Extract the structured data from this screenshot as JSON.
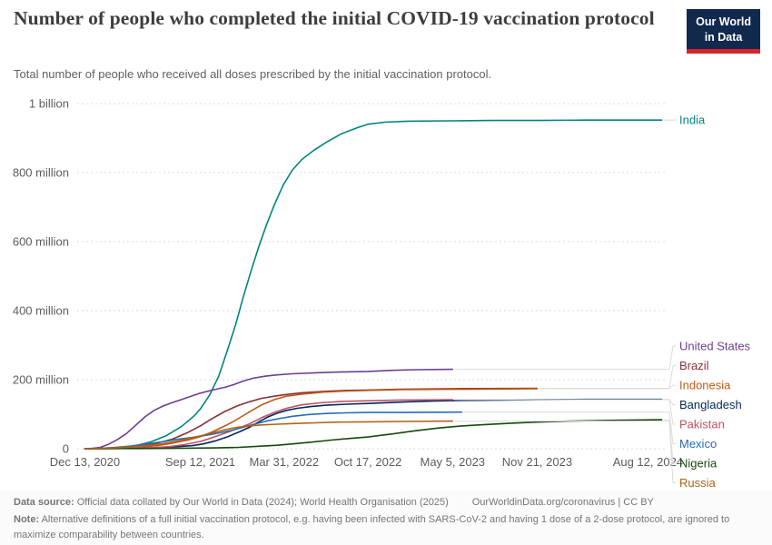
{
  "header": {
    "title": "Number of people who completed the initial COVID-19 vaccination protocol",
    "subtitle": "Total number of people who received all doses prescribed by the initial vaccination protocol.",
    "logo": {
      "line1": "Our World",
      "line2": "in Data"
    }
  },
  "chart_data": {
    "type": "line",
    "title": "Number of people who completed the initial COVID-19 vaccination protocol",
    "unit": "people",
    "value_scale": "millions",
    "grid": true,
    "legend_position": "right",
    "x_axis": {
      "range": [
        2020.9,
        2024.72
      ],
      "ticks": [
        {
          "t": 2020.95,
          "label": "Dec 13, 2020"
        },
        {
          "t": 2021.7,
          "label": "Sep 12, 2021"
        },
        {
          "t": 2022.245,
          "label": "Mar 31, 2022"
        },
        {
          "t": 2022.79,
          "label": "Oct 17, 2022"
        },
        {
          "t": 2023.34,
          "label": "May 5, 2023"
        },
        {
          "t": 2023.89,
          "label": "Nov 21, 2023"
        },
        {
          "t": 2024.61,
          "label": "Aug 12, 2024"
        }
      ]
    },
    "y_axis": {
      "range": [
        0,
        1000
      ],
      "ticks": [
        {
          "v": 0,
          "label": "0"
        },
        {
          "v": 200,
          "label": "200 million"
        },
        {
          "v": 400,
          "label": "400 million"
        },
        {
          "v": 600,
          "label": "600 million"
        },
        {
          "v": 800,
          "label": "800 million"
        },
        {
          "v": 1000,
          "label": "1 billion"
        }
      ]
    },
    "series": [
      {
        "name": "India",
        "color": "#00847e",
        "points": [
          [
            2020.95,
            0
          ],
          [
            2021.08,
            0.5
          ],
          [
            2021.18,
            3
          ],
          [
            2021.28,
            9
          ],
          [
            2021.38,
            20
          ],
          [
            2021.48,
            38
          ],
          [
            2021.58,
            65
          ],
          [
            2021.66,
            95
          ],
          [
            2021.7,
            115
          ],
          [
            2021.76,
            155
          ],
          [
            2021.82,
            210
          ],
          [
            2021.88,
            290
          ],
          [
            2021.93,
            360
          ],
          [
            2021.98,
            440
          ],
          [
            2022.03,
            515
          ],
          [
            2022.08,
            585
          ],
          [
            2022.13,
            648
          ],
          [
            2022.18,
            705
          ],
          [
            2022.24,
            765
          ],
          [
            2022.3,
            808
          ],
          [
            2022.36,
            838
          ],
          [
            2022.44,
            865
          ],
          [
            2022.52,
            888
          ],
          [
            2022.62,
            913
          ],
          [
            2022.72,
            930
          ],
          [
            2022.79,
            940
          ],
          [
            2022.9,
            946
          ],
          [
            2023.05,
            949
          ],
          [
            2023.34,
            950
          ],
          [
            2023.6,
            951
          ],
          [
            2023.89,
            951
          ],
          [
            2024.2,
            952
          ],
          [
            2024.7,
            952
          ]
        ]
      },
      {
        "name": "United States",
        "color": "#6d3e91",
        "points": [
          [
            2020.95,
            0
          ],
          [
            2021.0,
            1
          ],
          [
            2021.05,
            4
          ],
          [
            2021.1,
            12
          ],
          [
            2021.16,
            26
          ],
          [
            2021.22,
            44
          ],
          [
            2021.28,
            68
          ],
          [
            2021.34,
            92
          ],
          [
            2021.4,
            111
          ],
          [
            2021.46,
            124
          ],
          [
            2021.52,
            134
          ],
          [
            2021.58,
            143
          ],
          [
            2021.64,
            152
          ],
          [
            2021.7,
            161
          ],
          [
            2021.78,
            170
          ],
          [
            2021.86,
            178
          ],
          [
            2021.92,
            186
          ],
          [
            2021.98,
            196
          ],
          [
            2022.04,
            204
          ],
          [
            2022.12,
            210
          ],
          [
            2022.2,
            214
          ],
          [
            2022.3,
            217
          ],
          [
            2022.45,
            220
          ],
          [
            2022.6,
            222
          ],
          [
            2022.79,
            224
          ],
          [
            2022.95,
            227
          ],
          [
            2023.1,
            229
          ],
          [
            2023.34,
            230
          ]
        ]
      },
      {
        "name": "Brazil",
        "color": "#883039",
        "points": [
          [
            2020.95,
            0
          ],
          [
            2021.1,
            1
          ],
          [
            2021.22,
            4
          ],
          [
            2021.32,
            9
          ],
          [
            2021.42,
            16
          ],
          [
            2021.52,
            28
          ],
          [
            2021.62,
            47
          ],
          [
            2021.7,
            66
          ],
          [
            2021.78,
            88
          ],
          [
            2021.86,
            108
          ],
          [
            2021.94,
            124
          ],
          [
            2022.02,
            136
          ],
          [
            2022.1,
            146
          ],
          [
            2022.18,
            152
          ],
          [
            2022.26,
            157
          ],
          [
            2022.36,
            162
          ],
          [
            2022.5,
            166
          ],
          [
            2022.65,
            169
          ],
          [
            2022.79,
            170
          ],
          [
            2023.0,
            172
          ],
          [
            2023.34,
            174
          ],
          [
            2023.89,
            175
          ]
        ]
      },
      {
        "name": "Indonesia",
        "color": "#be5915",
        "points": [
          [
            2020.95,
            0
          ],
          [
            2021.15,
            1
          ],
          [
            2021.3,
            4
          ],
          [
            2021.42,
            9
          ],
          [
            2021.52,
            16
          ],
          [
            2021.62,
            25
          ],
          [
            2021.7,
            35
          ],
          [
            2021.78,
            49
          ],
          [
            2021.86,
            66
          ],
          [
            2021.92,
            80
          ],
          [
            2021.98,
            96
          ],
          [
            2022.04,
            112
          ],
          [
            2022.1,
            127
          ],
          [
            2022.18,
            142
          ],
          [
            2022.26,
            152
          ],
          [
            2022.36,
            158
          ],
          [
            2022.5,
            164
          ],
          [
            2022.65,
            167
          ],
          [
            2022.79,
            169
          ],
          [
            2023.0,
            171
          ],
          [
            2023.34,
            172
          ],
          [
            2023.89,
            174
          ]
        ]
      },
      {
        "name": "Bangladesh",
        "color": "#00295b",
        "points": [
          [
            2020.95,
            0
          ],
          [
            2021.2,
            1
          ],
          [
            2021.4,
            3
          ],
          [
            2021.55,
            6
          ],
          [
            2021.65,
            9
          ],
          [
            2021.72,
            14
          ],
          [
            2021.8,
            23
          ],
          [
            2021.88,
            35
          ],
          [
            2021.96,
            50
          ],
          [
            2022.02,
            62
          ],
          [
            2022.08,
            78
          ],
          [
            2022.14,
            92
          ],
          [
            2022.2,
            103
          ],
          [
            2022.26,
            111
          ],
          [
            2022.33,
            117
          ],
          [
            2022.42,
            122
          ],
          [
            2022.52,
            126
          ],
          [
            2022.65,
            129
          ],
          [
            2022.79,
            131
          ],
          [
            2023.0,
            135
          ],
          [
            2023.2,
            138
          ],
          [
            2023.4,
            140
          ],
          [
            2023.65,
            141
          ],
          [
            2023.89,
            142
          ],
          [
            2024.2,
            143
          ],
          [
            2024.7,
            143
          ]
        ]
      },
      {
        "name": "Pakistan",
        "color": "#c15065",
        "points": [
          [
            2020.95,
            0
          ],
          [
            2021.2,
            1
          ],
          [
            2021.38,
            3
          ],
          [
            2021.5,
            6
          ],
          [
            2021.6,
            12
          ],
          [
            2021.7,
            21
          ],
          [
            2021.78,
            32
          ],
          [
            2021.86,
            45
          ],
          [
            2021.94,
            58
          ],
          [
            2022.02,
            72
          ],
          [
            2022.1,
            90
          ],
          [
            2022.18,
            105
          ],
          [
            2022.26,
            117
          ],
          [
            2022.36,
            127
          ],
          [
            2022.48,
            133
          ],
          [
            2022.62,
            137
          ],
          [
            2022.79,
            139
          ],
          [
            2023.0,
            141
          ],
          [
            2023.34,
            142
          ]
        ]
      },
      {
        "name": "Mexico",
        "color": "#286bbb",
        "points": [
          [
            2020.95,
            0
          ],
          [
            2021.05,
            1
          ],
          [
            2021.15,
            4
          ],
          [
            2021.25,
            8
          ],
          [
            2021.35,
            14
          ],
          [
            2021.45,
            20
          ],
          [
            2021.55,
            27
          ],
          [
            2021.65,
            33
          ],
          [
            2021.7,
            36
          ],
          [
            2021.8,
            44
          ],
          [
            2021.9,
            53
          ],
          [
            2021.98,
            62
          ],
          [
            2022.06,
            72
          ],
          [
            2022.14,
            81
          ],
          [
            2022.22,
            88
          ],
          [
            2022.3,
            94
          ],
          [
            2022.4,
            99
          ],
          [
            2022.52,
            102
          ],
          [
            2022.65,
            104
          ],
          [
            2022.79,
            105
          ],
          [
            2023.0,
            105
          ],
          [
            2023.4,
            106
          ]
        ]
      },
      {
        "name": "Nigeria",
        "color": "#18470f",
        "points": [
          [
            2020.95,
            0
          ],
          [
            2021.3,
            0.5
          ],
          [
            2021.6,
            1.5
          ],
          [
            2021.8,
            2.5
          ],
          [
            2021.95,
            4
          ],
          [
            2022.08,
            7
          ],
          [
            2022.2,
            10
          ],
          [
            2022.3,
            14
          ],
          [
            2022.42,
            19
          ],
          [
            2022.55,
            25
          ],
          [
            2022.68,
            30
          ],
          [
            2022.79,
            34
          ],
          [
            2022.95,
            43
          ],
          [
            2023.1,
            52
          ],
          [
            2023.25,
            60
          ],
          [
            2023.4,
            66
          ],
          [
            2023.55,
            70
          ],
          [
            2023.72,
            74
          ],
          [
            2023.89,
            77
          ],
          [
            2024.1,
            80
          ],
          [
            2024.35,
            82
          ],
          [
            2024.7,
            84
          ]
        ]
      },
      {
        "name": "Russia",
        "color": "#b16214",
        "points": [
          [
            2020.95,
            0
          ],
          [
            2021.05,
            1
          ],
          [
            2021.15,
            3
          ],
          [
            2021.25,
            5
          ],
          [
            2021.35,
            9
          ],
          [
            2021.45,
            14
          ],
          [
            2021.55,
            22
          ],
          [
            2021.65,
            32
          ],
          [
            2021.7,
            37
          ],
          [
            2021.78,
            46
          ],
          [
            2021.86,
            55
          ],
          [
            2021.94,
            62
          ],
          [
            2022.02,
            66
          ],
          [
            2022.1,
            69
          ],
          [
            2022.2,
            71
          ],
          [
            2022.3,
            73
          ],
          [
            2022.45,
            75
          ],
          [
            2022.6,
            77
          ],
          [
            2022.79,
            78
          ],
          [
            2023.0,
            79
          ],
          [
            2023.34,
            80
          ]
        ]
      }
    ]
  },
  "footer": {
    "data_source_label": "Data source:",
    "data_source_text": "Official data collated by Our World in Data (2024); World Health Organisation (2025)",
    "link_text": "OurWorldinData.org/coronavirus | CC BY",
    "note_label": "Note:",
    "note_text": "Alternative definitions of a full initial vaccination protocol, e.g. having been infected with SARS-CoV-2 and having 1 dose of a 2-dose protocol, are ignored to maximize comparability between countries."
  },
  "colors": {
    "logo_background": "#12294e",
    "logo_accent": "#d8232a",
    "gridline": "#dedede",
    "tick_text": "#5c5c5c"
  }
}
